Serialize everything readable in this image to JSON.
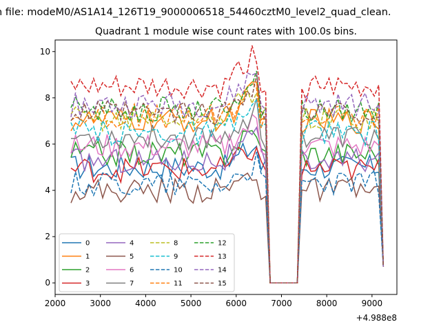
{
  "chart_data": {
    "type": "line",
    "suptitle": "n file: modeM0/AS1A14_126T19_9000006518_54460cztM0_level2_quad_clean.",
    "title": "Quadrant 1 module wise count rates with 100.0s bins.",
    "xlabel": "",
    "ylabel": "",
    "x_offset_label": "+4.988e8",
    "xlim": [
      2000,
      9550
    ],
    "ylim": [
      -0.5,
      10.5
    ],
    "xticks": [
      2000,
      3000,
      4000,
      5000,
      6000,
      7000,
      8000,
      9000
    ],
    "yticks": [
      0,
      2,
      4,
      6,
      8,
      10
    ],
    "grid": false,
    "legend_position": "lower-left",
    "legend_ncol": 4,
    "x_start": 2350,
    "x_step": 100,
    "gap_range": [
      6700,
      7400
    ],
    "series": [
      {
        "name": "0",
        "color": "#1f77b4",
        "style": "solid",
        "level": 5.0
      },
      {
        "name": "1",
        "color": "#ff7f0e",
        "style": "solid",
        "level": 7.0
      },
      {
        "name": "2",
        "color": "#2ca02c",
        "style": "solid",
        "level": 5.6
      },
      {
        "name": "3",
        "color": "#d62728",
        "style": "solid",
        "level": 4.9
      },
      {
        "name": "4",
        "color": "#9467bd",
        "style": "solid",
        "level": 5.3
      },
      {
        "name": "5",
        "color": "#8c564b",
        "style": "solid",
        "level": 4.0
      },
      {
        "name": "6",
        "color": "#e377c2",
        "style": "solid",
        "level": 5.9
      },
      {
        "name": "7",
        "color": "#7f7f7f",
        "style": "solid",
        "level": 6.3
      },
      {
        "name": "8",
        "color": "#bcbd22",
        "style": "dashed",
        "level": 7.1
      },
      {
        "name": "9",
        "color": "#17becf",
        "style": "dashed",
        "level": 6.5
      },
      {
        "name": "10",
        "color": "#1f77b4",
        "style": "dashed",
        "level": 4.3
      },
      {
        "name": "11",
        "color": "#ff7f0e",
        "style": "dashed",
        "level": 7.2
      },
      {
        "name": "12",
        "color": "#2ca02c",
        "style": "dashed",
        "level": 7.5
      },
      {
        "name": "13",
        "color": "#d62728",
        "style": "dashed",
        "level": 8.4
      },
      {
        "name": "14",
        "color": "#9467bd",
        "style": "dashed",
        "level": 7.7
      },
      {
        "name": "15",
        "color": "#8c564b",
        "style": "dashed",
        "level": 7.3
      }
    ]
  }
}
